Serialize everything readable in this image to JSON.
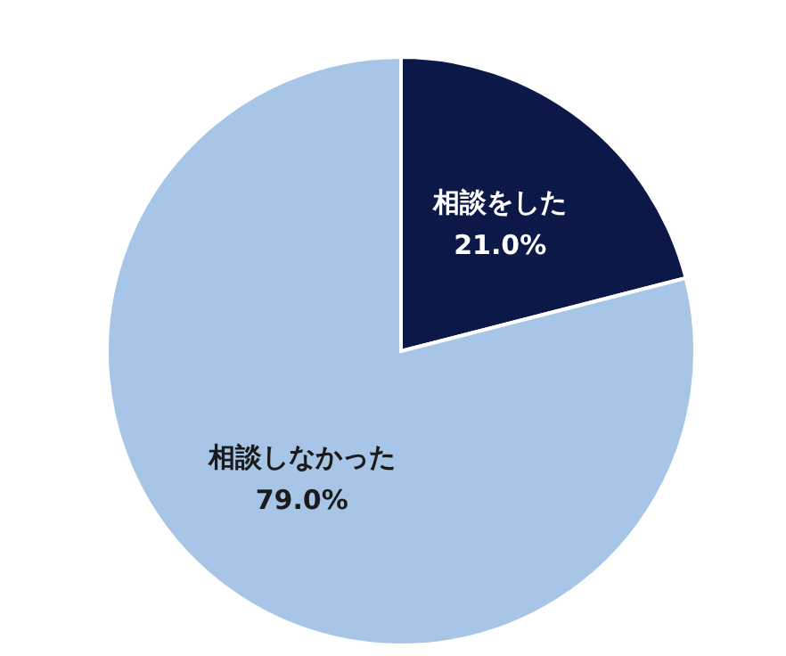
{
  "chart_data": {
    "type": "pie",
    "categories": [
      "相談をした",
      "相談しなかった"
    ],
    "values": [
      21.0,
      79.0
    ],
    "colors": [
      "#0c1848",
      "#a7c5e6"
    ],
    "value_labels": [
      "21.0%",
      "79.0%"
    ]
  }
}
